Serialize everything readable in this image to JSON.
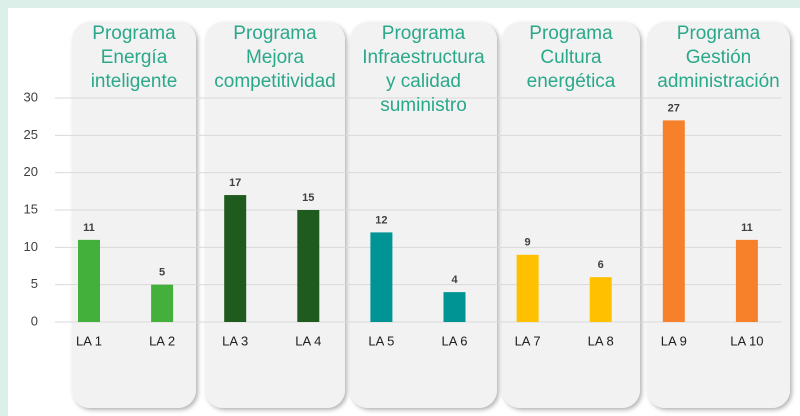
{
  "chart_data": {
    "type": "bar",
    "groups": [
      {
        "title_lines": [
          "Programa",
          "Energía",
          "inteligente"
        ],
        "color": "#43b03b",
        "categories": [
          "LA 1",
          "LA 2"
        ],
        "values": [
          11,
          5
        ]
      },
      {
        "title_lines": [
          "Programa",
          "Mejora",
          "competitividad"
        ],
        "color": "#1f5a1f",
        "categories": [
          "LA 3",
          "LA 4"
        ],
        "values": [
          17,
          15
        ]
      },
      {
        "title_lines": [
          "Programa",
          "Infraestructura",
          "y calidad",
          "suministro"
        ],
        "color": "#009494",
        "categories": [
          "LA 5",
          "LA 6"
        ],
        "values": [
          12,
          4
        ]
      },
      {
        "title_lines": [
          "Programa",
          "Cultura",
          "energética"
        ],
        "color": "#ffc000",
        "categories": [
          "LA 7",
          "LA 8"
        ],
        "values": [
          9,
          6
        ]
      },
      {
        "title_lines": [
          "Programa",
          "Gestión",
          "administración"
        ],
        "color": "#f7812a",
        "categories": [
          "LA 9",
          "LA 10"
        ],
        "values": [
          27,
          11
        ]
      }
    ],
    "ylim": [
      0,
      30
    ],
    "yticks": [
      0,
      5,
      10,
      15,
      20,
      25,
      30
    ],
    "grid": true
  }
}
